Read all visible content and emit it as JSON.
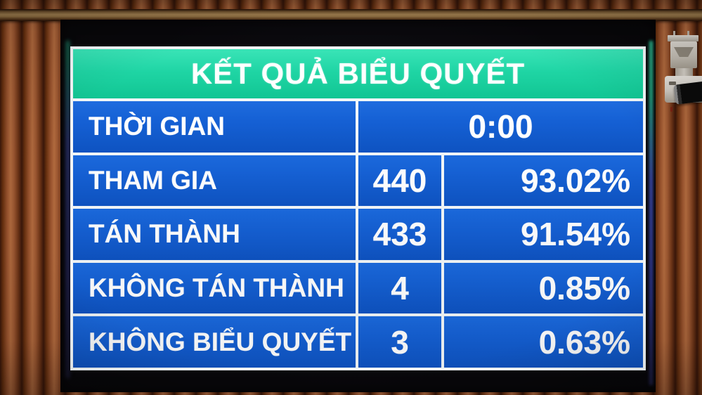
{
  "board": {
    "title": "KẾT QUẢ BIỂU QUYẾT",
    "time_row": {
      "label": "THỜI GIAN",
      "value": "0:00"
    },
    "rows": [
      {
        "label": "THAM GIA",
        "count": "440",
        "percent": "93.02%"
      },
      {
        "label": "TÁN THÀNH",
        "count": "433",
        "percent": "91.54%"
      },
      {
        "label": "KHÔNG TÁN THÀNH",
        "count": "4",
        "percent": "0.85%"
      },
      {
        "label": "KHÔNG BIỂU QUYẾT",
        "count": "3",
        "percent": "0.63%"
      }
    ],
    "colors": {
      "header_bg": "#14d3a0",
      "row_bg": "#1560d4",
      "grid_line": "#f2f7f9",
      "text": "#ffffff"
    }
  }
}
